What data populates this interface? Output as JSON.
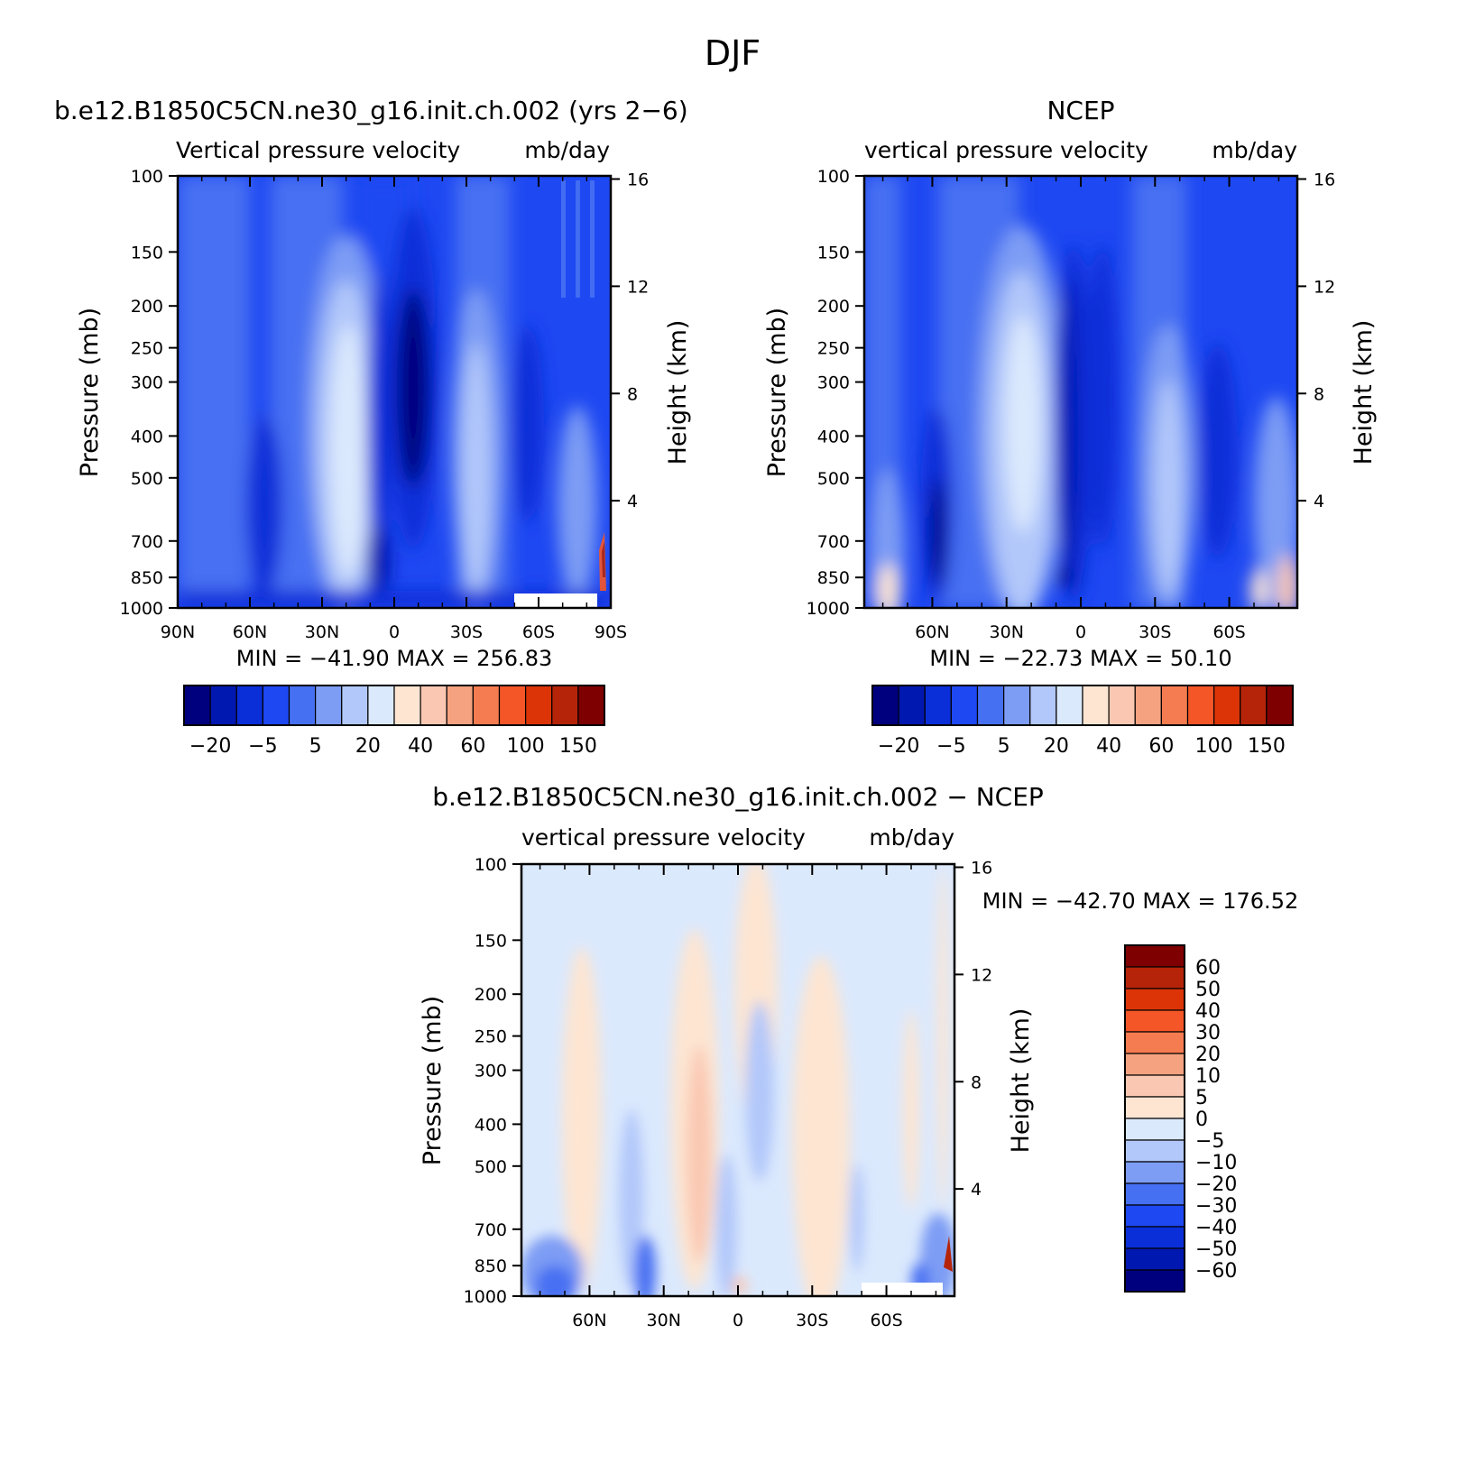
{
  "figure": {
    "title": "DJF"
  },
  "chart_data": [
    {
      "type": "heatmap",
      "panel": "model",
      "title": "b.e12.B1850C5CN.ne30_g16.init.ch.002 (yrs 2−6)",
      "subtitle_left": "Vertical  pressure  velocity",
      "subtitle_right": "mb/day",
      "ylabel": "Pressure  (mb)",
      "ylabel_right": "Height  (km)",
      "x_ticks": [
        "90N",
        "60N",
        "30N",
        "0",
        "30S",
        "60S",
        "90S"
      ],
      "y_ticks": [
        "100",
        "150",
        "200",
        "250",
        "300",
        "400",
        "500",
        "700",
        "850",
        "1000"
      ],
      "y_right_ticks": [
        "16",
        "12",
        "8",
        "4"
      ],
      "stats": "MIN  =  −41.90    MAX  =  256.83",
      "min": -41.9,
      "max": 256.83,
      "colorbar_labels": [
        "−20",
        "−5",
        "5",
        "20",
        "40",
        "60",
        "100",
        "150"
      ]
    },
    {
      "type": "heatmap",
      "panel": "obs",
      "title": "NCEP",
      "subtitle_left": "vertical  pressure  velocity",
      "subtitle_right": "mb/day",
      "ylabel": "Pressure  (mb)",
      "ylabel_right": "Height  (km)",
      "x_ticks": [
        "60N",
        "30N",
        "0",
        "30S",
        "60S"
      ],
      "y_ticks": [
        "100",
        "150",
        "200",
        "250",
        "300",
        "400",
        "500",
        "700",
        "850",
        "1000"
      ],
      "y_right_ticks": [
        "16",
        "12",
        "8",
        "4"
      ],
      "stats": "MIN  =  −22.73    MAX  =    50.10",
      "min": -22.73,
      "max": 50.1,
      "colorbar_labels": [
        "−20",
        "−5",
        "5",
        "20",
        "40",
        "60",
        "100",
        "150"
      ]
    },
    {
      "type": "heatmap",
      "panel": "difference",
      "title": "b.e12.B1850C5CN.ne30_g16.init.ch.002  −  NCEP",
      "subtitle_left": "vertical  pressure  velocity",
      "subtitle_right": "mb/day",
      "ylabel": "Pressure  (mb)",
      "ylabel_right": "Height  (km)",
      "x_ticks": [
        "60N",
        "30N",
        "0",
        "30S",
        "60S"
      ],
      "y_ticks": [
        "100",
        "150",
        "200",
        "250",
        "300",
        "400",
        "500",
        "700",
        "850",
        "1000"
      ],
      "y_right_ticks": [
        "16",
        "12",
        "8",
        "4"
      ],
      "stats": "MIN  =  −42.70    MAX  =  176.52",
      "min": -42.7,
      "max": 176.52,
      "colorbar_labels": [
        "60",
        "50",
        "40",
        "30",
        "20",
        "10",
        "5",
        "0",
        "−5",
        "−10",
        "−20",
        "−30",
        "−40",
        "−50",
        "−60"
      ]
    }
  ],
  "palettes": {
    "absolute": [
      "#00007f",
      "#0018b0",
      "#0a2ed8",
      "#1e48f2",
      "#4670f2",
      "#7d9cf4",
      "#b2c8fa",
      "#dbe9fd",
      "#fde5d2",
      "#fac8b2",
      "#f5a280",
      "#f57c50",
      "#f55628",
      "#dc3407",
      "#b52409",
      "#7f0000"
    ],
    "difference": [
      "#00007f",
      "#0018b0",
      "#0a2ed8",
      "#1e48f2",
      "#4670f2",
      "#7d9cf4",
      "#b2c8fa",
      "#dbe9fd",
      "#fde5d2",
      "#fac8b2",
      "#f5a280",
      "#f57c50",
      "#f55628",
      "#dc3407",
      "#b52409",
      "#7f0000"
    ]
  }
}
